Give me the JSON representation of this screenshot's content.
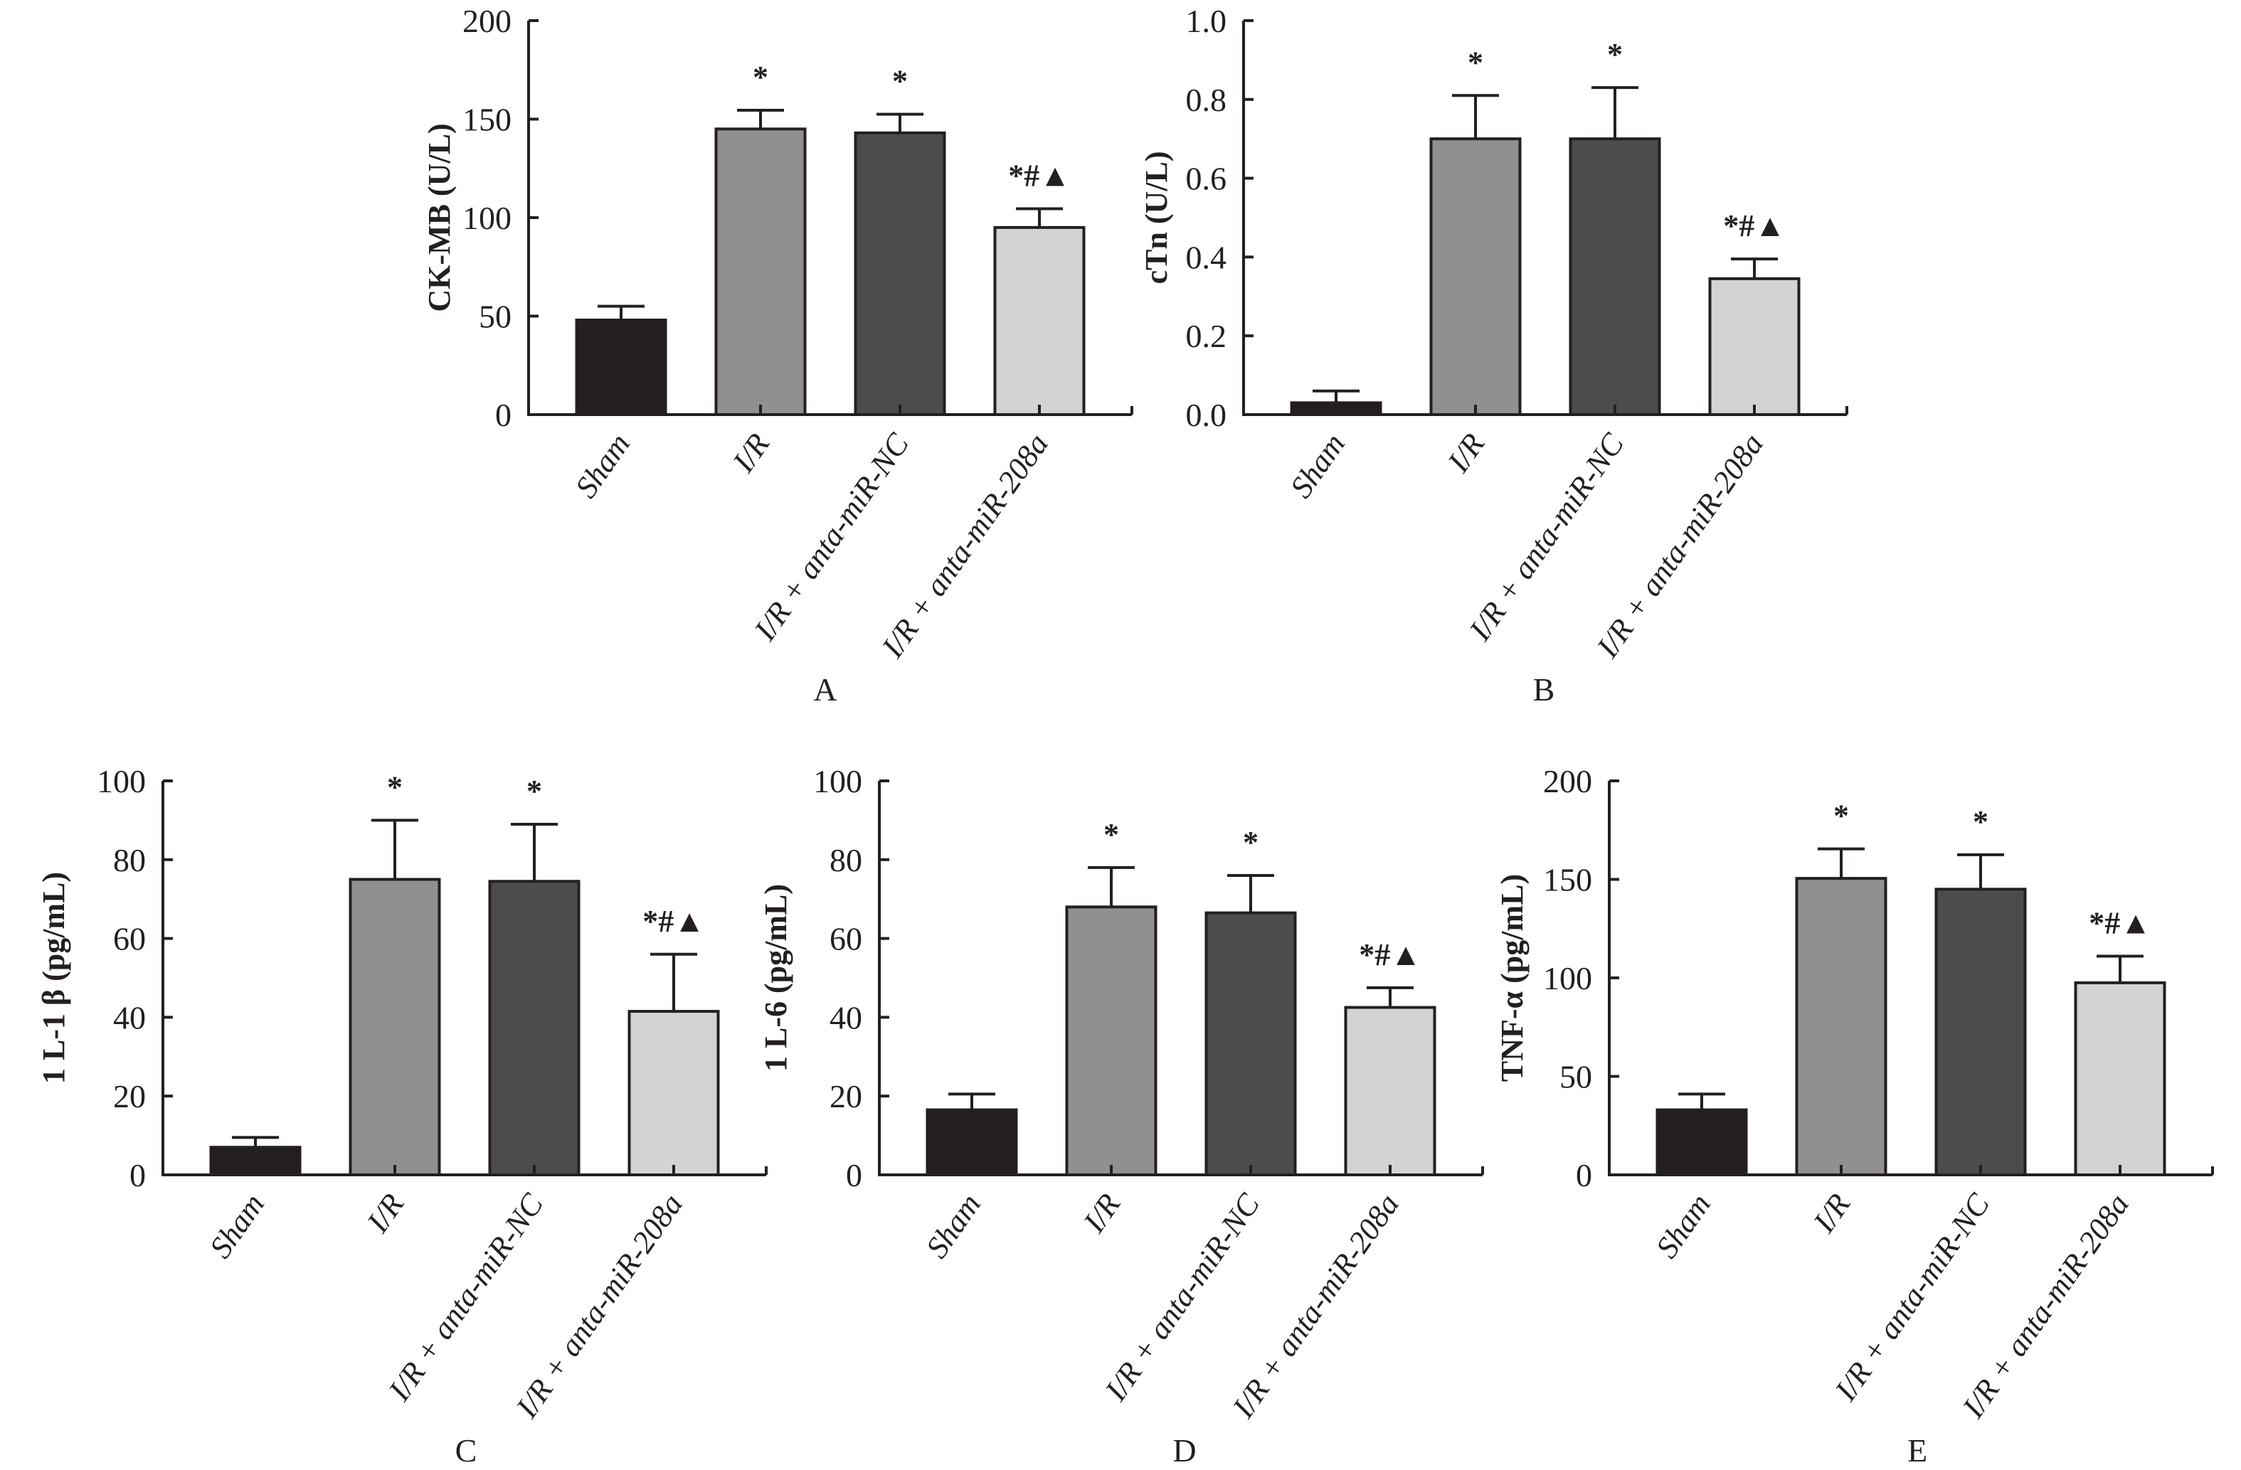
{
  "figure": {
    "categories": [
      "Sham",
      "I/R",
      "I/R + anta-miR-NC",
      "I/R + anta-miR-208a"
    ],
    "bar_colors": [
      "#231f20",
      "#918f90",
      "#4d4b4c",
      "#d3d3d3"
    ],
    "edge_color": "#231f20"
  },
  "chart_data": [
    {
      "panel": "A",
      "type": "bar",
      "ylabel": "CK-MB (U/L)",
      "ylim": [
        0,
        200
      ],
      "yticks": [
        "0",
        "50",
        "100",
        "150",
        "200"
      ],
      "ytick_values": [
        0,
        50,
        100,
        150,
        200
      ],
      "categories": [
        "Sham",
        "I/R",
        "I/R + anta-miR-NC",
        "I/R + anta-miR-208a"
      ],
      "values": [
        48,
        145,
        143,
        95
      ],
      "error_upper": [
        55,
        154.5,
        152.5,
        104.5
      ],
      "annotations": [
        "",
        "*",
        "*",
        "*#▲"
      ]
    },
    {
      "panel": "B",
      "type": "bar",
      "ylabel": "cTn (U/L)",
      "ylim": [
        0,
        1.0
      ],
      "yticks": [
        "0.0",
        "0.2",
        "0.4",
        "0.6",
        "0.8",
        "1.0"
      ],
      "ytick_values": [
        0,
        0.2,
        0.4,
        0.6,
        0.8,
        1.0
      ],
      "categories": [
        "Sham",
        "I/R",
        "I/R + anta-miR-NC",
        "I/R + anta-miR-208a"
      ],
      "values": [
        0.03,
        0.7,
        0.7,
        0.345
      ],
      "error_upper": [
        0.06,
        0.81,
        0.83,
        0.395
      ],
      "annotations": [
        "",
        "*",
        "*",
        "*#▲"
      ]
    },
    {
      "panel": "C",
      "type": "bar",
      "ylabel": "1 L-1 β (pg/mL)",
      "ylim": [
        0,
        100
      ],
      "yticks": [
        "0",
        "20",
        "40",
        "60",
        "80",
        "100"
      ],
      "ytick_values": [
        0,
        20,
        40,
        60,
        80,
        100
      ],
      "categories": [
        "Sham",
        "I/R",
        "I/R + anta-miR-NC",
        "I/R + anta-miR-208a"
      ],
      "values": [
        7,
        75,
        74.5,
        41.5
      ],
      "error_upper": [
        9.5,
        90,
        89,
        56
      ],
      "annotations": [
        "",
        "*",
        "*",
        "*#▲"
      ]
    },
    {
      "panel": "D",
      "type": "bar",
      "ylabel": "1 L-6 (pg/mL)",
      "ylim": [
        0,
        100
      ],
      "yticks": [
        "0",
        "20",
        "40",
        "60",
        "80",
        "100"
      ],
      "ytick_values": [
        0,
        20,
        40,
        60,
        80,
        100
      ],
      "categories": [
        "Sham",
        "I/R",
        "I/R + anta-miR-NC",
        "I/R + anta-miR-208a"
      ],
      "values": [
        16.5,
        68,
        66.5,
        42.5
      ],
      "error_upper": [
        20.5,
        78,
        76,
        47.5
      ],
      "annotations": [
        "",
        "*",
        "*",
        "*#▲"
      ]
    },
    {
      "panel": "E",
      "type": "bar",
      "ylabel": "TNF-α (pg/mL)",
      "ylim": [
        0,
        200
      ],
      "yticks": [
        "0",
        "50",
        "100",
        "150",
        "200"
      ],
      "ytick_values": [
        0,
        50,
        100,
        150,
        200
      ],
      "categories": [
        "Sham",
        "I/R",
        "I/R + anta-miR-NC",
        "I/R + anta-miR-208a"
      ],
      "values": [
        33,
        150.5,
        145,
        97.5
      ],
      "error_upper": [
        41,
        165.5,
        162.5,
        111
      ],
      "annotations": [
        "",
        "*",
        "*",
        "*#▲"
      ]
    }
  ]
}
